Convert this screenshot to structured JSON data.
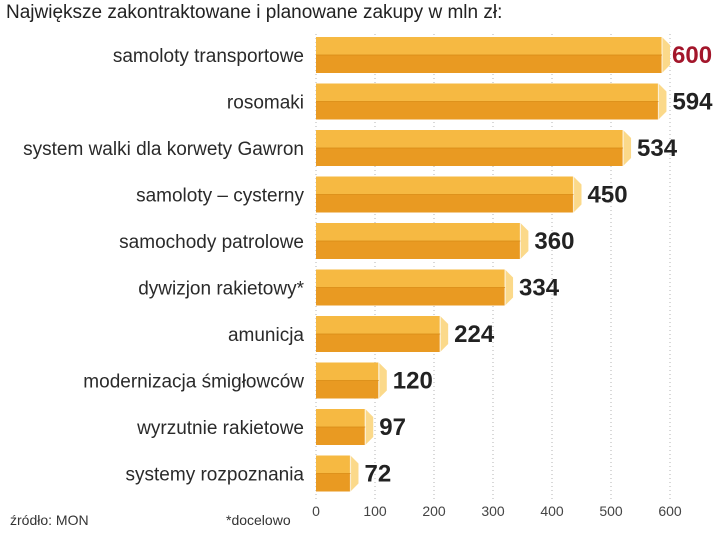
{
  "chart_data": {
    "type": "bar",
    "orientation": "horizontal",
    "title": "Największe zakontraktowane i planowane zakupy w mln zł:",
    "categories": [
      "samoloty transportowe",
      "rosomaki",
      "system walki dla korwety Gawron",
      "samoloty – cysterny",
      "samochody patrolowe",
      "dywizjon rakietowy*",
      "amunicja",
      "modernizacja śmigłowców",
      "wyrzutnie rakietowe",
      "systemy rozpoznania"
    ],
    "values": [
      600,
      594,
      534,
      450,
      360,
      334,
      224,
      120,
      97,
      72
    ],
    "value_labels": [
      "600",
      "594",
      "534",
      "450",
      "360",
      "334",
      "224",
      "120",
      "97",
      "72"
    ],
    "xlim": [
      0,
      600
    ],
    "xticks": [
      "0",
      "100",
      "200",
      "300",
      "400",
      "500",
      "600"
    ],
    "grid": true,
    "colors": {
      "bar_top": "#f6b942",
      "bar_bottom": "#e99a22",
      "bar_end": "#fbd98a",
      "highlight_label": "#a3162b",
      "value_label": "#222222",
      "grid": "#b3b3b3"
    }
  },
  "notes": {
    "source": "źródło: MON",
    "footnote": "*docelowo"
  }
}
